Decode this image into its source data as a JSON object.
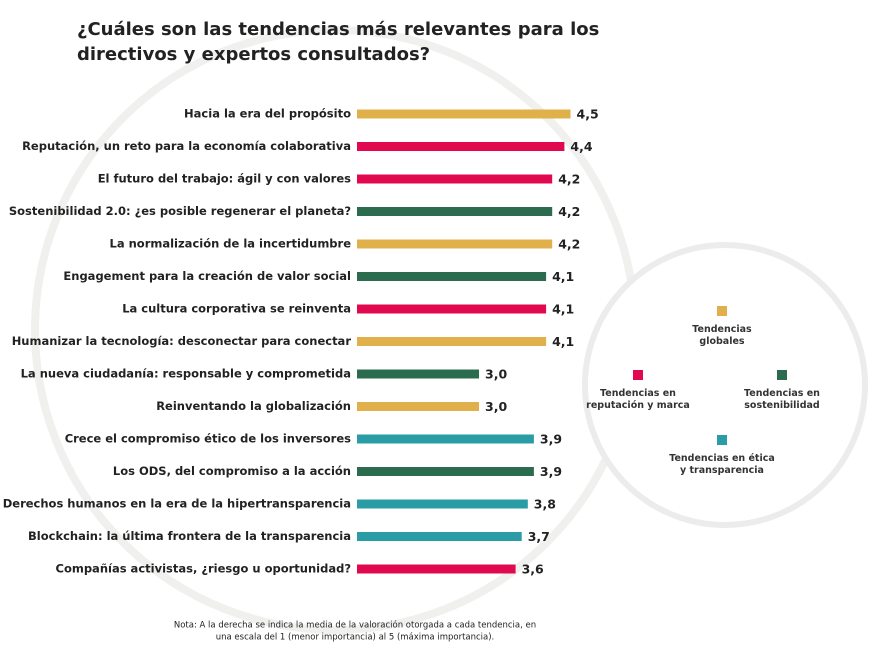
{
  "chart_data": {
    "type": "bar",
    "orientation": "horizontal",
    "title": [
      "¿Cuáles son las tendencias más relevantes para los",
      "directivos y expertos consultados?"
    ],
    "categories": [
      "Hacia la era del propósito",
      "Reputación, un reto para la economía colaborativa",
      "El futuro del trabajo: ágil y con valores",
      "Sostenibilidad 2.0: ¿es posible regenerar el planeta?",
      "La normalización de la incertidumbre",
      "Engagement para la creación de valor social",
      "La cultura corporativa se reinventa",
      "Humanizar la tecnología: desconectar para conectar",
      "La nueva ciudadanía: responsable y comprometida",
      "Reinventando la globalización",
      "Crece el compromiso ético de los inversores",
      "Los ODS, del compromiso a la acción",
      "Derechos humanos en la era de la hipertransparencia",
      "Blockchain: la última frontera de la transparencia",
      "Compañías activistas, ¿riesgo u oportunidad?"
    ],
    "values": [
      4.5,
      4.4,
      4.2,
      4.2,
      4.2,
      4.1,
      4.1,
      4.1,
      3.0,
      3.0,
      3.9,
      3.9,
      3.8,
      3.7,
      3.6
    ],
    "value_labels": [
      "4,5",
      "4,4",
      "4,2",
      "4,2",
      "4,2",
      "4,1",
      "4,1",
      "4,1",
      "3,0",
      "3,0",
      "3,9",
      "3,9",
      "3,8",
      "3,7",
      "3,6"
    ],
    "colors": [
      "#e0b04a",
      "#e0094f",
      "#e0094f",
      "#2b6b4e",
      "#e0b04a",
      "#2b6b4e",
      "#e0094f",
      "#e0b04a",
      "#2b6b4e",
      "#e0b04a",
      "#2a9ca6",
      "#2b6b4e",
      "#2a9ca6",
      "#2a9ca6",
      "#e0094f"
    ],
    "xlim": [
      1,
      5
    ],
    "legend": [
      {
        "name": "Tendencias globales",
        "color": "#e0b04a"
      },
      {
        "name": "Tendencias en reputación y marca",
        "color": "#e0094f"
      },
      {
        "name": "Tendencias en sostenibilidad",
        "color": "#2b6b4e"
      },
      {
        "name": "Tendencias en ética y transparencia",
        "color": "#2a9ca6"
      }
    ],
    "note": [
      "Nota: A la derecha se indica la media de la valoración otorgada a cada tendencia, en",
      "una escala del 1 (menor importancia) al 5 (máxima importancia)."
    ]
  }
}
